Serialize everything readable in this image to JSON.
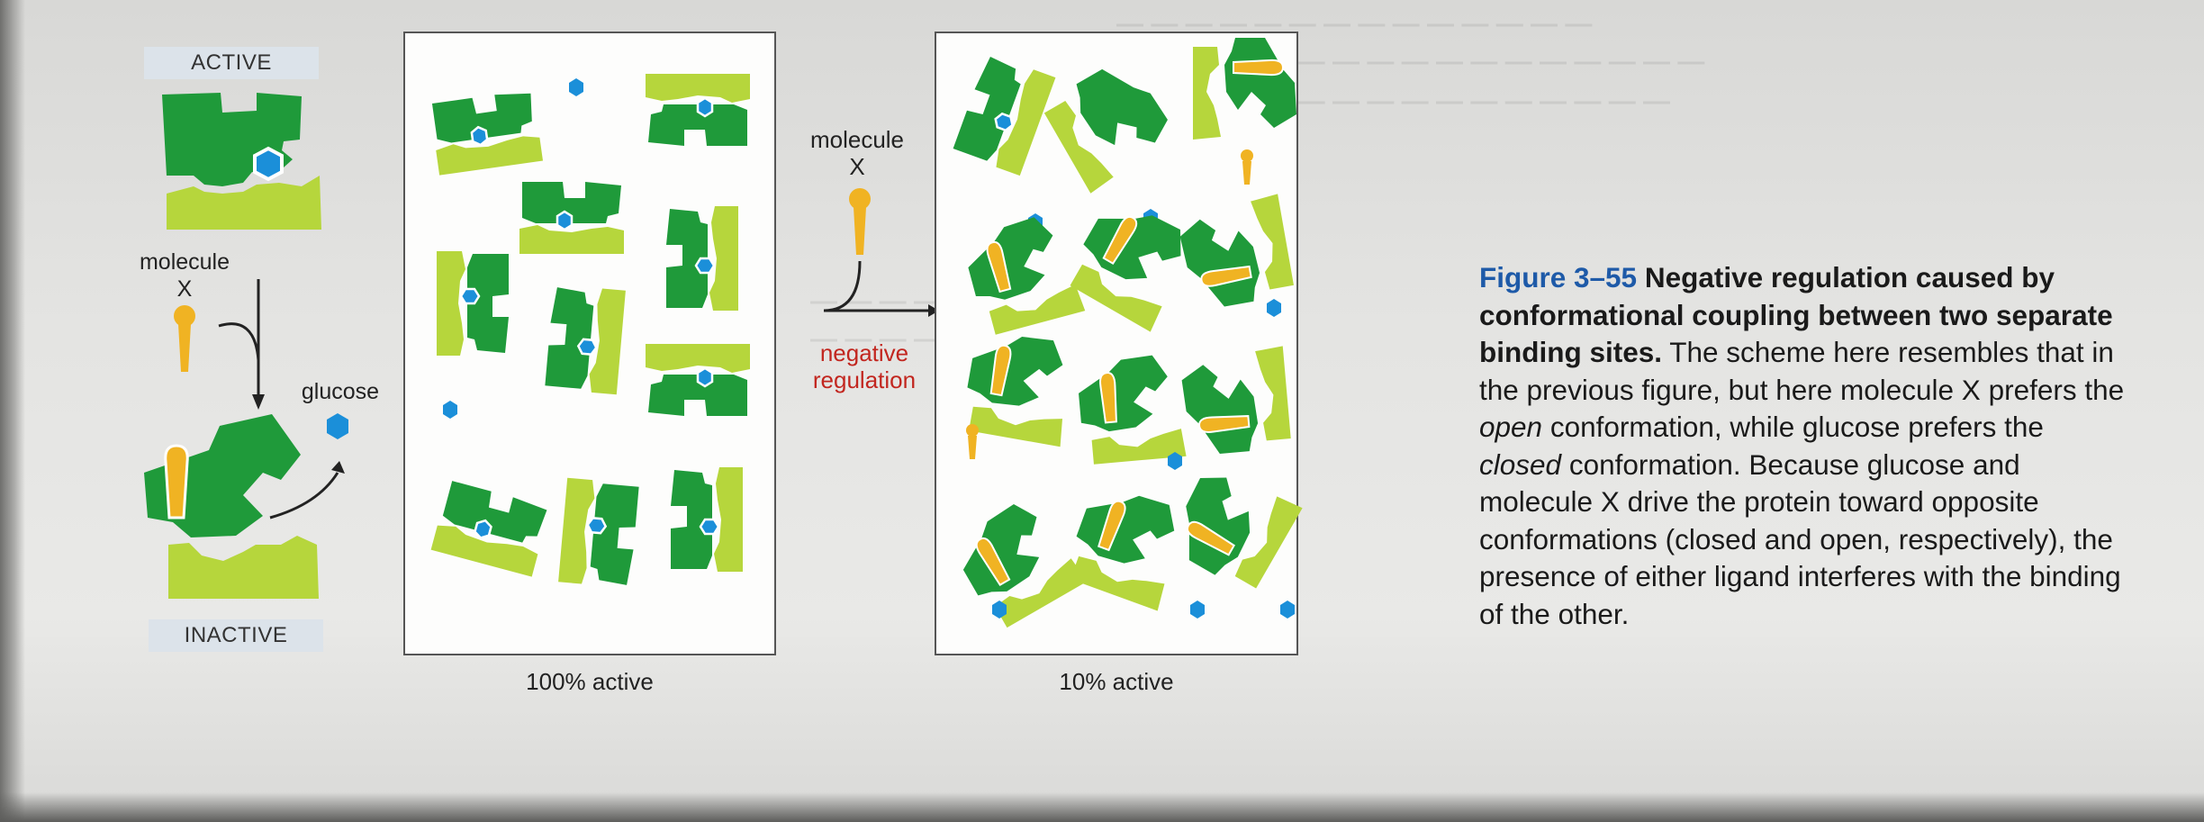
{
  "left_scheme": {
    "active_label": "ACTIVE",
    "inactive_label": "INACTIVE",
    "molecule_line1": "molecule",
    "molecule_line2": "X",
    "glucose_label": "glucose"
  },
  "panels": {
    "left_caption": "100% active",
    "right_caption": "10% active"
  },
  "middle": {
    "molecule_line1": "molecule",
    "molecule_line2": "X",
    "negative_line1": "negative",
    "negative_line2": "regulation"
  },
  "caption": {
    "figure_number": "Figure 3–55",
    "title": "Negative regulation caused by conformational coupling between two separate binding sites.",
    "body_1": " The scheme here resembles that in the previous figure, but here molecule X prefers the ",
    "em_open": "open",
    "body_2": " conformation, while glucose prefers the ",
    "em_closed": "closed",
    "body_3": " conformation. Because glucose and molecule X drive the protein toward opposite conformations (closed and open, respectively), the presence of either ligand interferes with the binding of the other."
  },
  "colors": {
    "dark_green": "#1f9a3a",
    "light_green": "#b6d63c",
    "glucose_blue": "#1b8fd9",
    "molecule_yellow": "#f0b323",
    "negative_red": "#c2261f",
    "figure_blue": "#1e5aa8"
  }
}
